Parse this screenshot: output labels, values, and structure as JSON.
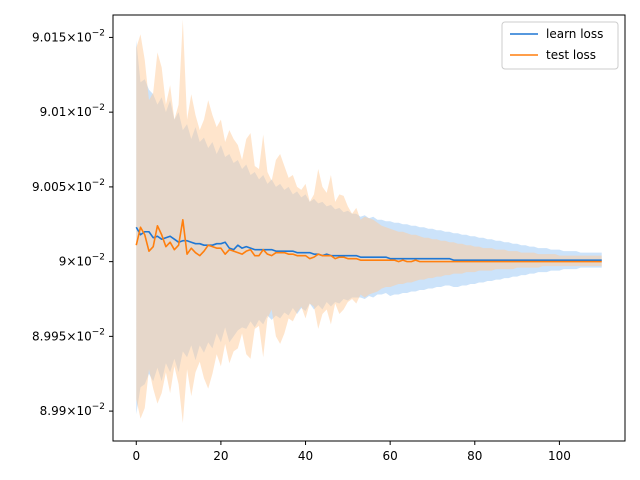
{
  "chart_data": {
    "type": "line",
    "title": "",
    "xlabel": "",
    "ylabel": "",
    "xlim": [
      -5.5,
      115.5
    ],
    "ylim": [
      0.08988,
      0.090165
    ],
    "xticks": [
      0,
      20,
      40,
      60,
      80,
      100
    ],
    "xtick_labels": [
      "0",
      "20",
      "40",
      "60",
      "80",
      "100"
    ],
    "yticks": [
      0.0899,
      0.08995,
      0.09,
      0.09005,
      0.0901,
      0.09015
    ],
    "ytick_labels": [
      {
        "mantissa": "8.99",
        "base": "10",
        "exp": "−2"
      },
      {
        "mantissa": "8.995",
        "base": "10",
        "exp": "−2"
      },
      {
        "mantissa": "9",
        "base": "10",
        "exp": "−2"
      },
      {
        "mantissa": "9.005",
        "base": "10",
        "exp": "−2"
      },
      {
        "mantissa": "9.01",
        "base": "10",
        "exp": "−2"
      },
      {
        "mantissa": "9.015",
        "base": "10",
        "exp": "−2"
      }
    ],
    "grid": false,
    "legend_position": "top-right",
    "x": [
      0,
      1,
      2,
      3,
      4,
      5,
      6,
      7,
      8,
      9,
      10,
      11,
      12,
      13,
      14,
      15,
      16,
      17,
      18,
      19,
      20,
      21,
      22,
      23,
      24,
      25,
      26,
      27,
      28,
      29,
      30,
      31,
      32,
      33,
      34,
      35,
      36,
      37,
      38,
      39,
      40,
      41,
      42,
      43,
      44,
      45,
      46,
      47,
      48,
      49,
      50,
      51,
      52,
      53,
      54,
      55,
      56,
      57,
      58,
      59,
      60,
      61,
      62,
      63,
      64,
      65,
      66,
      67,
      68,
      69,
      70,
      71,
      72,
      73,
      74,
      75,
      76,
      77,
      78,
      79,
      80,
      81,
      82,
      83,
      84,
      85,
      86,
      87,
      88,
      89,
      90,
      91,
      92,
      93,
      94,
      95,
      96,
      97,
      98,
      99,
      100,
      101,
      102,
      103,
      104,
      105,
      106,
      107,
      108,
      109,
      110
    ],
    "series": [
      {
        "name": "learn loss",
        "color": "#1f77d4",
        "band_color": "#aad0f7",
        "values": [
          0.090023,
          0.090018,
          0.09002,
          0.09002,
          0.090016,
          0.090017,
          0.090015,
          0.090016,
          0.090017,
          0.090015,
          0.090013,
          0.090014,
          0.090014,
          0.090013,
          0.090012,
          0.090012,
          0.090011,
          0.090011,
          0.090011,
          0.090012,
          0.090012,
          0.090013,
          0.090009,
          0.090008,
          0.090011,
          0.090009,
          0.09001,
          0.090009,
          0.090008,
          0.090008,
          0.090008,
          0.090008,
          0.090008,
          0.090007,
          0.090007,
          0.090007,
          0.090007,
          0.090007,
          0.090006,
          0.090006,
          0.090006,
          0.090006,
          0.090005,
          0.090005,
          0.090004,
          0.090005,
          0.090004,
          0.090004,
          0.090004,
          0.090004,
          0.090004,
          0.090004,
          0.090004,
          0.090003,
          0.090003,
          0.090003,
          0.090003,
          0.090003,
          0.090003,
          0.090003,
          0.090002,
          0.090002,
          0.090002,
          0.090002,
          0.090002,
          0.090002,
          0.090002,
          0.090002,
          0.090002,
          0.090002,
          0.090002,
          0.090002,
          0.090002,
          0.090002,
          0.090002,
          0.090001,
          0.090001,
          0.090001,
          0.090001,
          0.090001,
          0.090001,
          0.090001,
          0.090001,
          0.090001,
          0.090001,
          0.090001,
          0.090001,
          0.090001,
          0.090001,
          0.090001,
          0.090001,
          0.090001,
          0.090001,
          0.090001,
          0.090001,
          0.090001,
          0.090001,
          0.090001,
          0.090001,
          0.090001,
          0.090001,
          0.090001,
          0.090001,
          0.090001,
          0.090001,
          0.090001,
          0.090001,
          0.090001,
          0.090001,
          0.090001,
          0.090001
        ],
        "upper": [
          0.090148,
          0.09012,
          0.090122,
          0.090115,
          0.090112,
          0.090105,
          0.09011,
          0.0901,
          0.090108,
          0.090095,
          0.0901,
          0.090088,
          0.090092,
          0.090082,
          0.09009,
          0.09008,
          0.090083,
          0.090076,
          0.09008,
          0.090072,
          0.090078,
          0.09007,
          0.090072,
          0.090066,
          0.090068,
          0.090062,
          0.090065,
          0.090058,
          0.09006,
          0.090055,
          0.090058,
          0.090052,
          0.090055,
          0.09005,
          0.090052,
          0.090048,
          0.09005,
          0.090045,
          0.090047,
          0.090043,
          0.090045,
          0.09004,
          0.090042,
          0.090039,
          0.09004,
          0.090037,
          0.090038,
          0.090035,
          0.090036,
          0.090033,
          0.090034,
          0.090032,
          0.090032,
          0.09003,
          0.090031,
          0.090029,
          0.09003,
          0.090028,
          0.090028,
          0.090027,
          0.090027,
          0.090026,
          0.090026,
          0.090025,
          0.090025,
          0.090024,
          0.090024,
          0.090023,
          0.090023,
          0.090022,
          0.090022,
          0.090021,
          0.090021,
          0.09002,
          0.09002,
          0.090019,
          0.090019,
          0.090018,
          0.090018,
          0.090017,
          0.090017,
          0.090016,
          0.090016,
          0.090015,
          0.090015,
          0.090014,
          0.090014,
          0.090013,
          0.090013,
          0.090012,
          0.090012,
          0.090011,
          0.090011,
          0.09001,
          0.09001,
          0.090009,
          0.090009,
          0.090009,
          0.090008,
          0.090008,
          0.090008,
          0.090007,
          0.090007,
          0.090007,
          0.090007,
          0.090006,
          0.090006,
          0.090006,
          0.090006,
          0.090006,
          0.090006
        ],
        "lower": [
          0.089898,
          0.089916,
          0.089918,
          0.089925,
          0.08992,
          0.089929,
          0.08992,
          0.089932,
          0.089926,
          0.089935,
          0.089926,
          0.08994,
          0.089936,
          0.089944,
          0.089934,
          0.089944,
          0.089939,
          0.089946,
          0.089942,
          0.089952,
          0.089946,
          0.089956,
          0.089946,
          0.08995,
          0.089954,
          0.089956,
          0.089955,
          0.08996,
          0.089956,
          0.089961,
          0.089958,
          0.089964,
          0.089961,
          0.089964,
          0.089962,
          0.089966,
          0.089964,
          0.089969,
          0.089965,
          0.089969,
          0.089967,
          0.089972,
          0.089968,
          0.089971,
          0.089968,
          0.089973,
          0.08997,
          0.089973,
          0.089972,
          0.089975,
          0.089974,
          0.089976,
          0.089976,
          0.089976,
          0.089975,
          0.089977,
          0.089976,
          0.089978,
          0.089978,
          0.089979,
          0.089977,
          0.089978,
          0.089978,
          0.089979,
          0.089979,
          0.08998,
          0.08998,
          0.089981,
          0.089981,
          0.089982,
          0.089982,
          0.089983,
          0.089983,
          0.089984,
          0.089984,
          0.089983,
          0.089983,
          0.089984,
          0.089984,
          0.089985,
          0.089985,
          0.089986,
          0.089986,
          0.089987,
          0.089987,
          0.089988,
          0.089988,
          0.089989,
          0.089989,
          0.08999,
          0.08999,
          0.089991,
          0.089991,
          0.089992,
          0.089992,
          0.089993,
          0.089993,
          0.089993,
          0.089994,
          0.089994,
          0.089994,
          0.089995,
          0.089995,
          0.089995,
          0.089995,
          0.089996,
          0.089996,
          0.089996,
          0.089996,
          0.089996,
          0.089996
        ]
      },
      {
        "name": "test loss",
        "color": "#ff7f0e",
        "band_color": "#ffcc99",
        "values": [
          0.090011,
          0.090023,
          0.090018,
          0.090007,
          0.09001,
          0.090024,
          0.090018,
          0.09001,
          0.090013,
          0.090008,
          0.090011,
          0.090028,
          0.090005,
          0.090009,
          0.090006,
          0.090004,
          0.090007,
          0.090011,
          0.09001,
          0.090009,
          0.090009,
          0.090005,
          0.090008,
          0.090007,
          0.090006,
          0.090005,
          0.090007,
          0.090008,
          0.090004,
          0.090004,
          0.090008,
          0.090005,
          0.090004,
          0.090006,
          0.090006,
          0.090006,
          0.090005,
          0.090005,
          0.090004,
          0.090004,
          0.090004,
          0.090002,
          0.090003,
          0.090005,
          0.090004,
          0.090004,
          0.090004,
          0.090002,
          0.090003,
          0.090003,
          0.090002,
          0.090002,
          0.090002,
          0.090001,
          0.090001,
          0.090001,
          0.090001,
          0.090001,
          0.090001,
          0.090001,
          0.090001,
          0.090001,
          0.09,
          0.090001,
          0.09,
          0.09,
          0.090001,
          0.09,
          0.09,
          0.09,
          0.09,
          0.09,
          0.09,
          0.09,
          0.09,
          0.09,
          0.09,
          0.09,
          0.09,
          0.09,
          0.09,
          0.09,
          0.09,
          0.09,
          0.09,
          0.09,
          0.09,
          0.09,
          0.09,
          0.09,
          0.09,
          0.09,
          0.09,
          0.09,
          0.09,
          0.09,
          0.09,
          0.09,
          0.09,
          0.09,
          0.09,
          0.09,
          0.09,
          0.09,
          0.09,
          0.09,
          0.09,
          0.09,
          0.09,
          0.09,
          0.09
        ],
        "upper": [
          0.090143,
          0.090152,
          0.090135,
          0.090108,
          0.090113,
          0.09014,
          0.09013,
          0.090105,
          0.090118,
          0.090095,
          0.090105,
          0.090162,
          0.090095,
          0.090112,
          0.090098,
          0.090088,
          0.090095,
          0.090108,
          0.090098,
          0.09009,
          0.090095,
          0.09008,
          0.090088,
          0.090082,
          0.090078,
          0.090068,
          0.090082,
          0.090086,
          0.090064,
          0.090062,
          0.090085,
          0.09006,
          0.090054,
          0.090068,
          0.090072,
          0.090064,
          0.090056,
          0.090058,
          0.09005,
          0.090048,
          0.090052,
          0.09004,
          0.090045,
          0.090062,
          0.09005,
          0.090046,
          0.090058,
          0.09004,
          0.090045,
          0.090044,
          0.090037,
          0.090032,
          0.090036,
          0.090028,
          0.09003,
          0.090029,
          0.090028,
          0.090026,
          0.090024,
          0.090023,
          0.090022,
          0.090021,
          0.09002,
          0.09002,
          0.090019,
          0.090018,
          0.090018,
          0.090017,
          0.090016,
          0.090016,
          0.090015,
          0.090015,
          0.090014,
          0.090014,
          0.090013,
          0.090013,
          0.090012,
          0.090012,
          0.090011,
          0.090011,
          0.09001,
          0.09001,
          0.090009,
          0.090009,
          0.090009,
          0.090008,
          0.090008,
          0.090008,
          0.090007,
          0.090007,
          0.090007,
          0.090006,
          0.090006,
          0.090006,
          0.090006,
          0.090005,
          0.090005,
          0.090005,
          0.090005,
          0.090005,
          0.090004,
          0.090004,
          0.090004,
          0.090004,
          0.090004,
          0.090004,
          0.090004,
          0.090004,
          0.090004,
          0.090004,
          0.090004
        ],
        "lower": [
          0.089908,
          0.089895,
          0.089902,
          0.089928,
          0.089915,
          0.089905,
          0.089912,
          0.089926,
          0.089912,
          0.08993,
          0.089918,
          0.089892,
          0.089928,
          0.08991,
          0.089926,
          0.089933,
          0.089922,
          0.089915,
          0.089925,
          0.089938,
          0.08993,
          0.089945,
          0.089932,
          0.08994,
          0.089942,
          0.089952,
          0.089938,
          0.089935,
          0.089955,
          0.089957,
          0.089936,
          0.089962,
          0.089968,
          0.08995,
          0.089945,
          0.089952,
          0.089962,
          0.08996,
          0.089966,
          0.08997,
          0.089962,
          0.089972,
          0.08997,
          0.089955,
          0.089965,
          0.089968,
          0.089958,
          0.089972,
          0.089965,
          0.089968,
          0.089973,
          0.089975,
          0.089972,
          0.089978,
          0.089976,
          0.089978,
          0.089979,
          0.08998,
          0.089982,
          0.089983,
          0.089983,
          0.089984,
          0.089985,
          0.089985,
          0.089986,
          0.089986,
          0.089987,
          0.089988,
          0.089988,
          0.089989,
          0.089989,
          0.08999,
          0.08999,
          0.089991,
          0.089991,
          0.089992,
          0.089992,
          0.089992,
          0.089993,
          0.089993,
          0.089993,
          0.089994,
          0.089994,
          0.089994,
          0.089994,
          0.089995,
          0.089995,
          0.089995,
          0.089995,
          0.089995,
          0.089996,
          0.089996,
          0.089996,
          0.089996,
          0.089996,
          0.089996,
          0.089997,
          0.089997,
          0.089997,
          0.089997,
          0.089997,
          0.089997,
          0.089997,
          0.089997,
          0.089997,
          0.089997,
          0.089997,
          0.089997,
          0.089997,
          0.089997,
          0.089997
        ]
      }
    ]
  }
}
